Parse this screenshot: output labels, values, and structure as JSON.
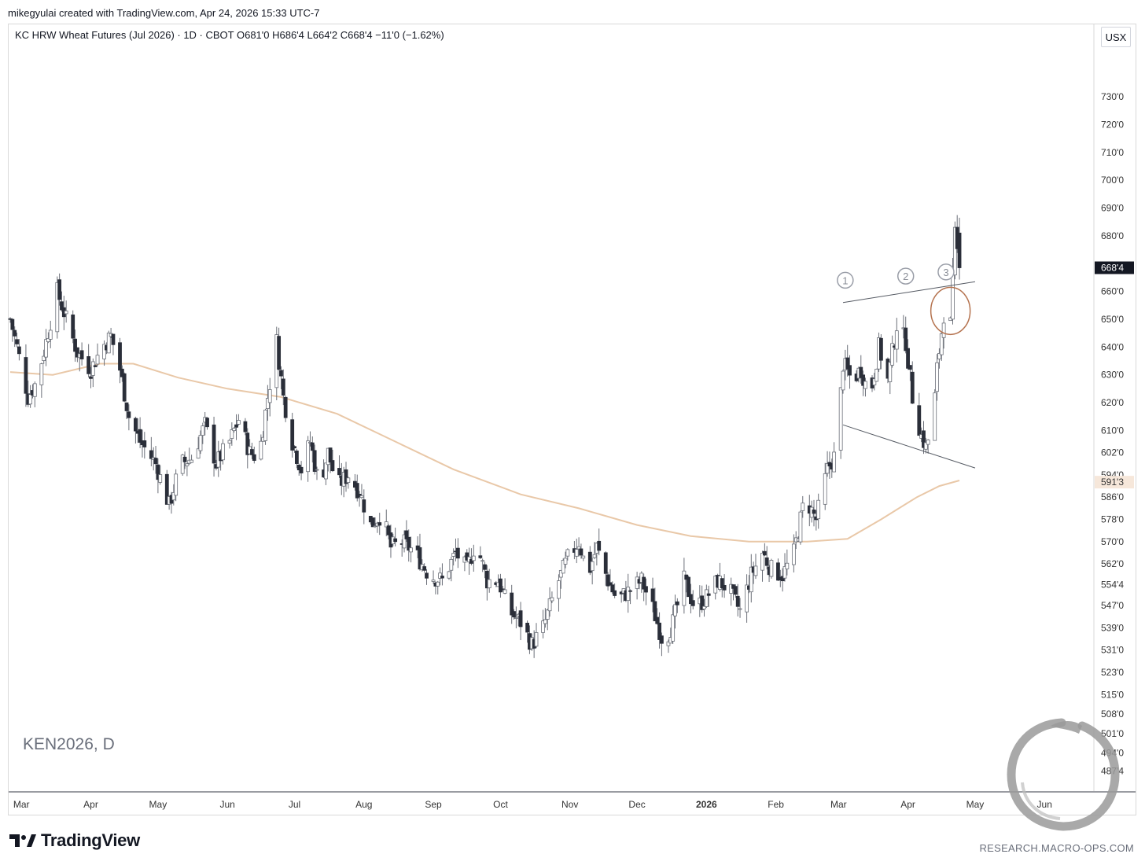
{
  "header": {
    "credit": "mikegyulai created with TradingView.com, Apr 24, 2026 15:33 UTC-7",
    "legend": "KC HRW Wheat Futures (Jul 2026) · 1D · CBOT  O681'0  H686'4  L664'2  C668'4  −11'0 (−1.62%)",
    "currency": "USX"
  },
  "watermark": "KEN2026, D",
  "footer": {
    "brand": "TradingView",
    "site": "RESEARCH.MACRO-OPS.COM"
  },
  "colors": {
    "up": "#ffffff",
    "down": "#2a2e39",
    "wick": "#6b6f78",
    "ma": "#e9c8a8",
    "annotation": "#b5734f",
    "pattern": "#555a63"
  },
  "chart_data": {
    "type": "candlestick",
    "symbol": "KEN2026",
    "interval": "1D",
    "yaxis_labels": [
      "730'0",
      "720'0",
      "710'0",
      "700'0",
      "690'0",
      "680'0",
      "660'0",
      "650'0",
      "640'0",
      "630'0",
      "620'0",
      "610'0",
      "602'0",
      "594'0",
      "586'0",
      "578'0",
      "570'0",
      "562'0",
      "554'4",
      "547'0",
      "539'0",
      "531'0",
      "523'0",
      "515'0",
      "508'0",
      "501'0",
      "494'0",
      "487'4"
    ],
    "yaxis_values": [
      730,
      720,
      710,
      700,
      690,
      680,
      660,
      650,
      640,
      630,
      620,
      610,
      602,
      594,
      586,
      578,
      570,
      562,
      554.5,
      547,
      539,
      531,
      523,
      515,
      508,
      501,
      494,
      487.5
    ],
    "ylim": [
      482,
      745
    ],
    "last_price_label": "668'4",
    "last_price": 668.5,
    "ma_label": "591'3",
    "ma_value": 591.4,
    "xaxis_labels": [
      {
        "label": "Mar",
        "date": "2025-03-01",
        "bold": false
      },
      {
        "label": "Apr",
        "date": "2025-04-01",
        "bold": false
      },
      {
        "label": "May",
        "date": "2025-05-01",
        "bold": false
      },
      {
        "label": "Jun",
        "date": "2025-06-01",
        "bold": false
      },
      {
        "label": "Jul",
        "date": "2025-07-01",
        "bold": false
      },
      {
        "label": "Aug",
        "date": "2025-08-01",
        "bold": false
      },
      {
        "label": "Sep",
        "date": "2025-09-01",
        "bold": false
      },
      {
        "label": "Oct",
        "date": "2025-10-01",
        "bold": false
      },
      {
        "label": "Nov",
        "date": "2025-11-01",
        "bold": false
      },
      {
        "label": "Dec",
        "date": "2025-12-01",
        "bold": false
      },
      {
        "label": "2026",
        "date": "2026-01-01",
        "bold": true
      },
      {
        "label": "Feb",
        "date": "2026-02-01",
        "bold": false
      },
      {
        "label": "Mar",
        "date": "2026-03-01",
        "bold": false
      },
      {
        "label": "Apr",
        "date": "2026-04-01",
        "bold": false
      },
      {
        "label": "May",
        "date": "2026-05-01",
        "bold": false
      },
      {
        "label": "Jun",
        "date": "2026-06-01",
        "bold": false
      }
    ],
    "xlim": [
      "2025-02-24",
      "2026-06-22"
    ],
    "ohlc_anchors": [
      [
        "2025-02-24",
        650
      ],
      [
        "2025-02-27",
        640
      ],
      [
        "2025-03-04",
        622
      ],
      [
        "2025-03-08",
        628
      ],
      [
        "2025-03-12",
        642
      ],
      [
        "2025-03-17",
        660
      ],
      [
        "2025-03-21",
        650
      ],
      [
        "2025-03-26",
        638
      ],
      [
        "2025-04-01",
        632
      ],
      [
        "2025-04-06",
        640
      ],
      [
        "2025-04-10",
        644
      ],
      [
        "2025-04-14",
        632
      ],
      [
        "2025-04-18",
        615
      ],
      [
        "2025-04-23",
        606
      ],
      [
        "2025-04-30",
        598
      ],
      [
        "2025-05-06",
        583
      ],
      [
        "2025-05-11",
        598
      ],
      [
        "2025-05-16",
        600
      ],
      [
        "2025-05-22",
        612
      ],
      [
        "2025-05-27",
        598
      ],
      [
        "2025-06-02",
        606
      ],
      [
        "2025-06-06",
        614
      ],
      [
        "2025-06-11",
        602
      ],
      [
        "2025-06-15",
        600
      ],
      [
        "2025-06-19",
        622
      ],
      [
        "2025-06-23",
        642
      ],
      [
        "2025-06-26",
        622
      ],
      [
        "2025-06-30",
        606
      ],
      [
        "2025-07-04",
        596
      ],
      [
        "2025-07-08",
        606
      ],
      [
        "2025-07-12",
        590
      ],
      [
        "2025-07-16",
        602
      ],
      [
        "2025-07-20",
        590
      ],
      [
        "2025-07-25",
        594
      ],
      [
        "2025-07-30",
        588
      ],
      [
        "2025-08-04",
        576
      ],
      [
        "2025-08-09",
        580
      ],
      [
        "2025-08-13",
        568
      ],
      [
        "2025-08-18",
        570
      ],
      [
        "2025-08-24",
        566
      ],
      [
        "2025-08-30",
        558
      ],
      [
        "2025-09-05",
        556
      ],
      [
        "2025-09-11",
        566
      ],
      [
        "2025-09-16",
        560
      ],
      [
        "2025-09-20",
        570
      ],
      [
        "2025-09-25",
        556
      ],
      [
        "2025-09-30",
        556
      ],
      [
        "2025-10-05",
        545
      ],
      [
        "2025-10-10",
        541
      ],
      [
        "2025-10-15",
        533
      ],
      [
        "2025-10-20",
        539
      ],
      [
        "2025-10-26",
        554
      ],
      [
        "2025-10-31",
        564
      ],
      [
        "2025-11-05",
        570
      ],
      [
        "2025-11-09",
        558
      ],
      [
        "2025-11-13",
        568
      ],
      [
        "2025-11-18",
        556
      ],
      [
        "2025-11-22",
        549
      ],
      [
        "2025-11-27",
        552
      ],
      [
        "2025-12-03",
        556
      ],
      [
        "2025-12-08",
        546
      ],
      [
        "2025-12-13",
        533
      ],
      [
        "2025-12-17",
        541
      ],
      [
        "2025-12-22",
        556
      ],
      [
        "2025-12-27",
        546
      ],
      [
        "2026-01-01",
        550
      ],
      [
        "2026-01-06",
        556
      ],
      [
        "2026-01-11",
        553
      ],
      [
        "2026-01-16",
        545
      ],
      [
        "2026-01-21",
        558
      ],
      [
        "2026-01-26",
        566
      ],
      [
        "2026-01-30",
        560
      ],
      [
        "2026-02-04",
        558
      ],
      [
        "2026-02-09",
        566
      ],
      [
        "2026-02-14",
        586
      ],
      [
        "2026-02-19",
        578
      ],
      [
        "2026-02-24",
        596
      ],
      [
        "2026-02-28",
        602
      ],
      [
        "2026-03-03",
        634
      ],
      [
        "2026-03-07",
        628
      ],
      [
        "2026-03-11",
        632
      ],
      [
        "2026-03-15",
        622
      ],
      [
        "2026-03-19",
        640
      ],
      [
        "2026-03-23",
        628
      ],
      [
        "2026-03-27",
        648
      ],
      [
        "2026-03-31",
        642
      ],
      [
        "2026-04-03",
        622
      ],
      [
        "2026-04-07",
        608
      ],
      [
        "2026-04-09",
        604
      ],
      [
        "2026-04-12",
        612
      ],
      [
        "2026-04-14",
        632
      ],
      [
        "2026-04-17",
        652
      ],
      [
        "2026-04-20",
        648
      ],
      [
        "2026-04-22",
        680
      ],
      [
        "2026-04-24",
        668.5
      ]
    ],
    "ma_points": [
      [
        "2025-02-24",
        631
      ],
      [
        "2025-03-15",
        630
      ],
      [
        "2025-04-05",
        634
      ],
      [
        "2025-04-20",
        634
      ],
      [
        "2025-05-10",
        629
      ],
      [
        "2025-06-01",
        625
      ],
      [
        "2025-06-25",
        622
      ],
      [
        "2025-07-20",
        616
      ],
      [
        "2025-08-15",
        606
      ],
      [
        "2025-09-10",
        596
      ],
      [
        "2025-10-10",
        587
      ],
      [
        "2025-11-05",
        582
      ],
      [
        "2025-12-01",
        576
      ],
      [
        "2025-12-25",
        572
      ],
      [
        "2026-01-20",
        570
      ],
      [
        "2026-02-15",
        570
      ],
      [
        "2026-03-05",
        571
      ],
      [
        "2026-03-20",
        578
      ],
      [
        "2026-04-05",
        586
      ],
      [
        "2026-04-15",
        590
      ],
      [
        "2026-04-24",
        592
      ]
    ],
    "pattern_lines": [
      {
        "name": "upper",
        "from": [
          "2026-03-03",
          656
        ],
        "to": [
          "2026-05-01",
          663.5
        ]
      },
      {
        "name": "lower",
        "from": [
          "2026-03-03",
          612
        ],
        "to": [
          "2026-05-01",
          596.5
        ]
      }
    ],
    "markers": [
      {
        "label": "1",
        "date": "2026-03-04",
        "price": 664
      },
      {
        "label": "2",
        "date": "2026-03-31",
        "price": 665.5
      },
      {
        "label": "3",
        "date": "2026-04-18",
        "price": 667
      }
    ],
    "highlight_circle": {
      "date": "2026-04-20",
      "price": 653
    }
  }
}
